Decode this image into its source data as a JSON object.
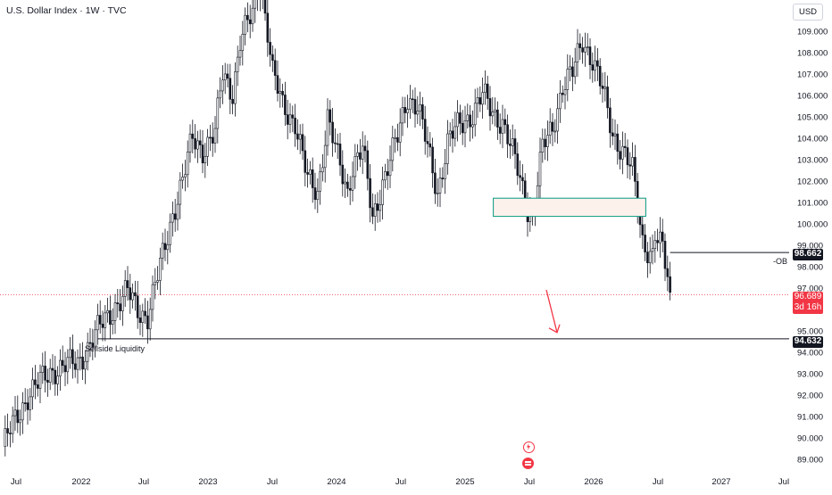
{
  "header": {
    "title": "U.S. Dollar Index · 1W · TVC",
    "currency": "USD"
  },
  "badges": {
    "ob_price": "98.662",
    "last_price": "96.689",
    "countdown": "3d 16h",
    "liquidity_price": "94.632"
  },
  "annotations": {
    "ob_label": "-OB",
    "liquidity_label": "Sellside Liquidity"
  },
  "colors": {
    "up": "#089981",
    "down": "#f23645",
    "candle": "#131722",
    "ob_box_border": "#089981",
    "ob_box_fill": "#fdf1ec",
    "arrow": "#f23645"
  },
  "chart_data": {
    "type": "candlestick",
    "symbol": "U.S. Dollar Index",
    "timeframe": "1W",
    "y_ticks": [
      "109.000",
      "108.000",
      "107.000",
      "106.000",
      "105.000",
      "104.000",
      "103.000",
      "102.000",
      "101.000",
      "100.000",
      "99.000",
      "98.000",
      "97.000",
      "96.000",
      "95.000",
      "94.000",
      "93.000",
      "92.000",
      "91.000",
      "90.000",
      "89.000"
    ],
    "x_ticks": [
      "Jul",
      "2022",
      "Jul",
      "2023",
      "Jul",
      "2024",
      "Jul",
      "2025",
      "Jul",
      "2026",
      "Jul",
      "2027",
      "Jul"
    ],
    "ylim": [
      88.8,
      110.2
    ],
    "series": [
      {
        "anchors": [
          [
            0,
            89.6
          ],
          [
            10,
            92.0
          ],
          [
            20,
            93.2
          ],
          [
            30,
            93.5
          ],
          [
            38,
            95.0
          ],
          [
            45,
            96.2
          ],
          [
            50,
            96.8
          ],
          [
            54,
            96.0
          ],
          [
            58,
            95.7
          ],
          [
            62,
            97.5
          ],
          [
            68,
            100.5
          ],
          [
            72,
            102.0
          ],
          [
            76,
            104.0
          ],
          [
            80,
            103.5
          ],
          [
            85,
            104.2
          ],
          [
            88,
            107.0
          ],
          [
            92,
            106.2
          ],
          [
            95,
            108.5
          ],
          [
            100,
            109.8
          ],
          [
            103,
            111.5
          ],
          [
            106,
            109.0
          ],
          [
            108,
            107.0
          ],
          [
            112,
            105.5
          ],
          [
            117,
            104.8
          ],
          [
            122,
            102.0
          ],
          [
            126,
            101.5
          ],
          [
            130,
            105.0
          ],
          [
            134,
            103.0
          ],
          [
            138,
            101.5
          ],
          [
            140,
            102.8
          ],
          [
            144,
            103.5
          ],
          [
            148,
            100.2
          ],
          [
            152,
            102.0
          ],
          [
            158,
            104.0
          ],
          [
            162,
            106.0
          ],
          [
            166,
            105.5
          ],
          [
            170,
            103.5
          ],
          [
            174,
            101.5
          ],
          [
            178,
            103.8
          ],
          [
            182,
            104.5
          ],
          [
            188,
            105.2
          ],
          [
            192,
            106.0
          ],
          [
            196,
            105.2
          ],
          [
            200,
            104.8
          ],
          [
            206,
            102.5
          ],
          [
            210,
            100.8
          ],
          [
            212,
            100.4
          ],
          [
            216,
            103.5
          ],
          [
            220,
            104.5
          ],
          [
            224,
            106.5
          ],
          [
            228,
            107.0
          ],
          [
            232,
            108.6
          ],
          [
            236,
            107.7
          ],
          [
            240,
            106.2
          ],
          [
            244,
            104.2
          ],
          [
            248,
            103.5
          ],
          [
            252,
            102.4
          ],
          [
            256,
            99.2
          ],
          [
            260,
            98.6
          ],
          [
            261,
            99.5
          ],
          [
            264,
            98.7
          ],
          [
            266,
            97.5
          ],
          [
            267,
            96.8
          ]
        ],
        "wick": 0.35
      }
    ],
    "order_block": {
      "from_week": 182,
      "to_week": 248,
      "low": 100.35,
      "high": 101.2
    },
    "horizontal_levels": [
      {
        "from_week": 267,
        "price": 98.662,
        "label": "-OB"
      },
      {
        "from_week": 38,
        "price": 94.632,
        "label": "Sellside Liquidity"
      }
    ],
    "last_price": 96.689,
    "projection": {
      "from_week": 268,
      "from_price": 97.0,
      "to_week": 276,
      "to_price": 94.8
    },
    "grid": false,
    "legend": "none"
  }
}
